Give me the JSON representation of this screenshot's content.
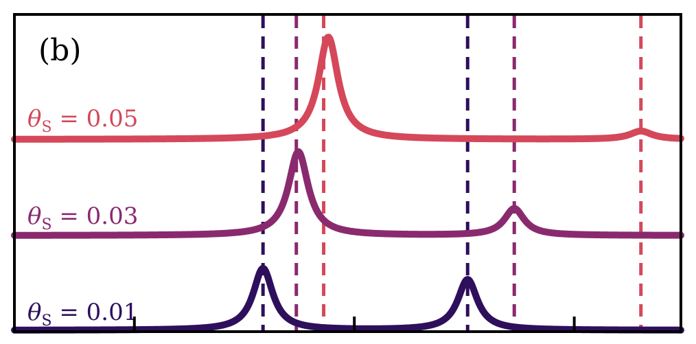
{
  "chart_data": {
    "type": "line",
    "panel_label": "(b)",
    "xlim": [
      0,
      1
    ],
    "grid": false,
    "xticks": [
      0.18,
      0.51,
      0.84
    ],
    "series": [
      {
        "name": "θS = 0.05",
        "label_parts": {
          "symbol": "θ",
          "sub": "S",
          "eq": " = 0.05"
        },
        "color": "#d4485a",
        "dashed_lines": [
          0.464,
          0.94
        ],
        "peaks": [
          {
            "x": 0.471,
            "height": 1.0,
            "width": 0.018
          },
          {
            "x": 0.94,
            "height": 0.08,
            "width": 0.02
          }
        ]
      },
      {
        "name": "θS = 0.03",
        "label_parts": {
          "symbol": "θ",
          "sub": "S",
          "eq": " = 0.03"
        },
        "color": "#8a2a6e",
        "dashed_lines": [
          0.423,
          0.75
        ],
        "peaks": [
          {
            "x": 0.426,
            "height": 1.0,
            "width": 0.018
          },
          {
            "x": 0.75,
            "height": 0.32,
            "width": 0.018
          }
        ]
      },
      {
        "name": "θS = 0.01",
        "label_parts": {
          "symbol": "θ",
          "sub": "S",
          "eq": " = 0.01"
        },
        "color": "#2e0f5c",
        "dashed_lines": [
          0.373,
          0.68
        ],
        "peaks": [
          {
            "x": 0.373,
            "height": 1.0,
            "width": 0.018
          },
          {
            "x": 0.68,
            "height": 0.82,
            "width": 0.018
          }
        ]
      }
    ]
  }
}
